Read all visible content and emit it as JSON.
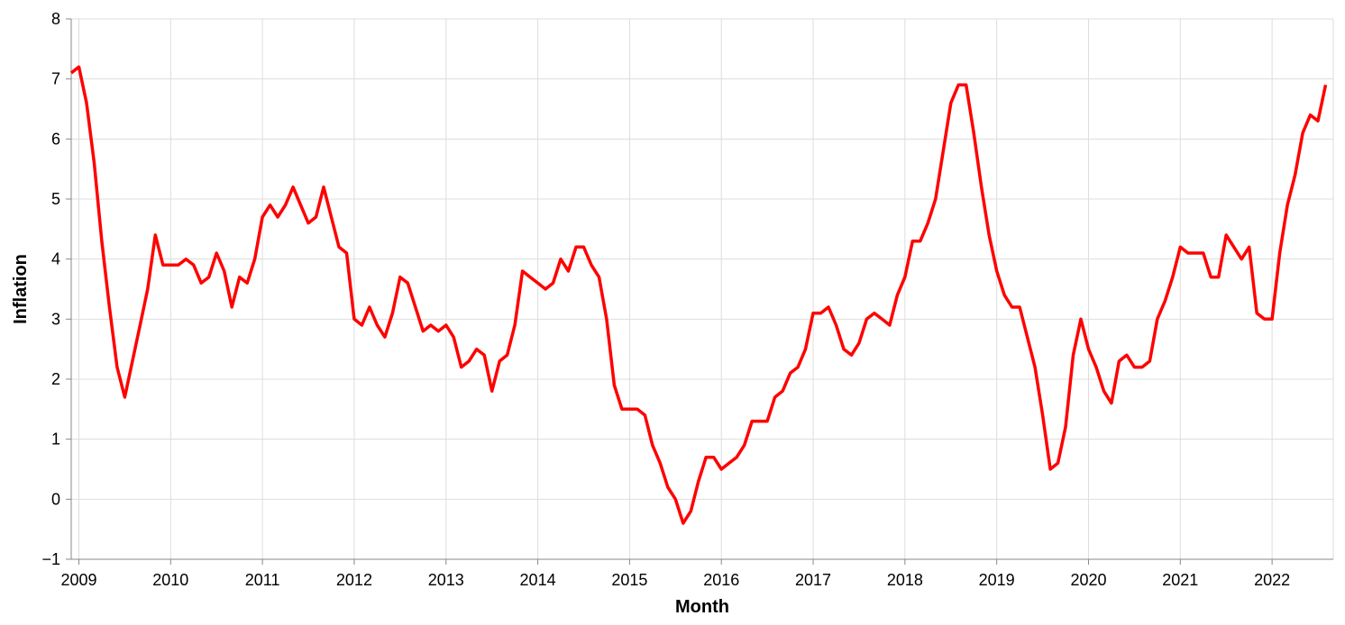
{
  "chart_data": {
    "type": "line",
    "xlabel": "Month",
    "ylabel": "Inflation",
    "ylim": [
      -1,
      8
    ],
    "x_start": "2008-12",
    "x_end": "2022-09",
    "grid": true,
    "color": "#ff0000",
    "y_ticks": [
      -1,
      0,
      1,
      2,
      3,
      4,
      5,
      6,
      7,
      8
    ],
    "x_ticks": [
      {
        "label": "2009",
        "date": "2009-01"
      },
      {
        "label": "2010",
        "date": "2010-01"
      },
      {
        "label": "2011",
        "date": "2011-01"
      },
      {
        "label": "2012",
        "date": "2012-01"
      },
      {
        "label": "2013",
        "date": "2013-01"
      },
      {
        "label": "2014",
        "date": "2014-01"
      },
      {
        "label": "2015",
        "date": "2015-01"
      },
      {
        "label": "2016",
        "date": "2016-01"
      },
      {
        "label": "2017",
        "date": "2017-01"
      },
      {
        "label": "2018",
        "date": "2018-01"
      },
      {
        "label": "2019",
        "date": "2019-01"
      },
      {
        "label": "2020",
        "date": "2020-01"
      },
      {
        "label": "2021",
        "date": "2021-01"
      },
      {
        "label": "2022",
        "date": "2022-01"
      }
    ],
    "series": [
      {
        "points": [
          [
            "2008-12",
            7.1
          ],
          [
            "2009-01",
            7.2
          ],
          [
            "2009-02",
            6.6
          ],
          [
            "2009-03",
            5.6
          ],
          [
            "2009-04",
            4.3
          ],
          [
            "2009-05",
            3.2
          ],
          [
            "2009-06",
            2.2
          ],
          [
            "2009-07",
            1.7
          ],
          [
            "2009-08",
            2.3
          ],
          [
            "2009-09",
            2.9
          ],
          [
            "2009-10",
            3.5
          ],
          [
            "2009-11",
            4.4
          ],
          [
            "2009-12",
            3.9
          ],
          [
            "2010-01",
            3.9
          ],
          [
            "2010-02",
            3.9
          ],
          [
            "2010-03",
            4.0
          ],
          [
            "2010-04",
            3.9
          ],
          [
            "2010-05",
            3.6
          ],
          [
            "2010-06",
            3.7
          ],
          [
            "2010-07",
            4.1
          ],
          [
            "2010-08",
            3.8
          ],
          [
            "2010-09",
            3.2
          ],
          [
            "2010-10",
            3.7
          ],
          [
            "2010-11",
            3.6
          ],
          [
            "2010-12",
            4.0
          ],
          [
            "2011-01",
            4.7
          ],
          [
            "2011-02",
            4.9
          ],
          [
            "2011-03",
            4.7
          ],
          [
            "2011-04",
            4.9
          ],
          [
            "2011-05",
            5.2
          ],
          [
            "2011-06",
            4.9
          ],
          [
            "2011-07",
            4.6
          ],
          [
            "2011-08",
            4.7
          ],
          [
            "2011-09",
            5.2
          ],
          [
            "2011-10",
            4.7
          ],
          [
            "2011-11",
            4.2
          ],
          [
            "2011-12",
            4.1
          ],
          [
            "2012-01",
            3.0
          ],
          [
            "2012-02",
            2.9
          ],
          [
            "2012-03",
            3.2
          ],
          [
            "2012-04",
            2.9
          ],
          [
            "2012-05",
            2.7
          ],
          [
            "2012-06",
            3.1
          ],
          [
            "2012-07",
            3.7
          ],
          [
            "2012-08",
            3.6
          ],
          [
            "2012-09",
            3.2
          ],
          [
            "2012-10",
            2.8
          ],
          [
            "2012-11",
            2.9
          ],
          [
            "2012-12",
            2.8
          ],
          [
            "2013-01",
            2.9
          ],
          [
            "2013-02",
            2.7
          ],
          [
            "2013-03",
            2.2
          ],
          [
            "2013-04",
            2.3
          ],
          [
            "2013-05",
            2.5
          ],
          [
            "2013-06",
            2.4
          ],
          [
            "2013-07",
            1.8
          ],
          [
            "2013-08",
            2.3
          ],
          [
            "2013-09",
            2.4
          ],
          [
            "2013-10",
            2.9
          ],
          [
            "2013-11",
            3.8
          ],
          [
            "2013-12",
            3.7
          ],
          [
            "2014-01",
            3.6
          ],
          [
            "2014-02",
            3.5
          ],
          [
            "2014-03",
            3.6
          ],
          [
            "2014-04",
            4.0
          ],
          [
            "2014-05",
            3.8
          ],
          [
            "2014-06",
            4.2
          ],
          [
            "2014-07",
            4.2
          ],
          [
            "2014-08",
            3.9
          ],
          [
            "2014-09",
            3.7
          ],
          [
            "2014-10",
            3.0
          ],
          [
            "2014-11",
            1.9
          ],
          [
            "2014-12",
            1.5
          ],
          [
            "2015-01",
            1.5
          ],
          [
            "2015-02",
            1.5
          ],
          [
            "2015-03",
            1.4
          ],
          [
            "2015-04",
            0.9
          ],
          [
            "2015-05",
            0.6
          ],
          [
            "2015-06",
            0.2
          ],
          [
            "2015-07",
            0.0
          ],
          [
            "2015-08",
            -0.4
          ],
          [
            "2015-09",
            -0.2
          ],
          [
            "2015-10",
            0.3
          ],
          [
            "2015-11",
            0.7
          ],
          [
            "2015-12",
            0.7
          ],
          [
            "2016-01",
            0.5
          ],
          [
            "2016-02",
            0.6
          ],
          [
            "2016-03",
            0.7
          ],
          [
            "2016-04",
            0.9
          ],
          [
            "2016-05",
            1.3
          ],
          [
            "2016-06",
            1.3
          ],
          [
            "2016-07",
            1.3
          ],
          [
            "2016-08",
            1.7
          ],
          [
            "2016-09",
            1.8
          ],
          [
            "2016-10",
            2.1
          ],
          [
            "2016-11",
            2.2
          ],
          [
            "2016-12",
            2.5
          ],
          [
            "2017-01",
            3.1
          ],
          [
            "2017-02",
            3.1
          ],
          [
            "2017-03",
            3.2
          ],
          [
            "2017-04",
            2.9
          ],
          [
            "2017-05",
            2.5
          ],
          [
            "2017-06",
            2.4
          ],
          [
            "2017-07",
            2.6
          ],
          [
            "2017-08",
            3.0
          ],
          [
            "2017-09",
            3.1
          ],
          [
            "2017-10",
            3.0
          ],
          [
            "2017-11",
            2.9
          ],
          [
            "2017-12",
            3.4
          ],
          [
            "2018-01",
            3.7
          ],
          [
            "2018-02",
            4.3
          ],
          [
            "2018-03",
            4.3
          ],
          [
            "2018-04",
            4.6
          ],
          [
            "2018-05",
            5.0
          ],
          [
            "2018-06",
            5.8
          ],
          [
            "2018-07",
            6.6
          ],
          [
            "2018-08",
            6.9
          ],
          [
            "2018-09",
            6.9
          ],
          [
            "2018-10",
            6.1
          ],
          [
            "2018-11",
            5.2
          ],
          [
            "2018-12",
            4.4
          ],
          [
            "2019-01",
            3.8
          ],
          [
            "2019-02",
            3.4
          ],
          [
            "2019-03",
            3.2
          ],
          [
            "2019-04",
            3.2
          ],
          [
            "2019-05",
            2.7
          ],
          [
            "2019-06",
            2.2
          ],
          [
            "2019-07",
            1.4
          ],
          [
            "2019-08",
            0.5
          ],
          [
            "2019-09",
            0.6
          ],
          [
            "2019-10",
            1.2
          ],
          [
            "2019-11",
            2.4
          ],
          [
            "2019-12",
            3.0
          ],
          [
            "2020-01",
            2.5
          ],
          [
            "2020-02",
            2.2
          ],
          [
            "2020-03",
            1.8
          ],
          [
            "2020-04",
            1.6
          ],
          [
            "2020-05",
            2.3
          ],
          [
            "2020-06",
            2.4
          ],
          [
            "2020-07",
            2.2
          ],
          [
            "2020-08",
            2.2
          ],
          [
            "2020-09",
            2.3
          ],
          [
            "2020-10",
            3.0
          ],
          [
            "2020-11",
            3.3
          ],
          [
            "2020-12",
            3.7
          ],
          [
            "2021-01",
            4.2
          ],
          [
            "2021-02",
            4.1
          ],
          [
            "2021-03",
            4.1
          ],
          [
            "2021-04",
            4.1
          ],
          [
            "2021-05",
            3.7
          ],
          [
            "2021-06",
            3.7
          ],
          [
            "2021-07",
            4.4
          ],
          [
            "2021-08",
            4.2
          ],
          [
            "2021-09",
            4.0
          ],
          [
            "2021-10",
            4.2
          ],
          [
            "2021-11",
            3.1
          ],
          [
            "2021-12",
            3.0
          ],
          [
            "2022-01",
            3.0
          ],
          [
            "2022-02",
            4.1
          ],
          [
            "2022-03",
            4.9
          ],
          [
            "2022-04",
            5.4
          ],
          [
            "2022-05",
            6.1
          ],
          [
            "2022-06",
            6.4
          ],
          [
            "2022-07",
            6.3
          ],
          [
            "2022-08",
            6.9
          ]
        ]
      }
    ]
  }
}
